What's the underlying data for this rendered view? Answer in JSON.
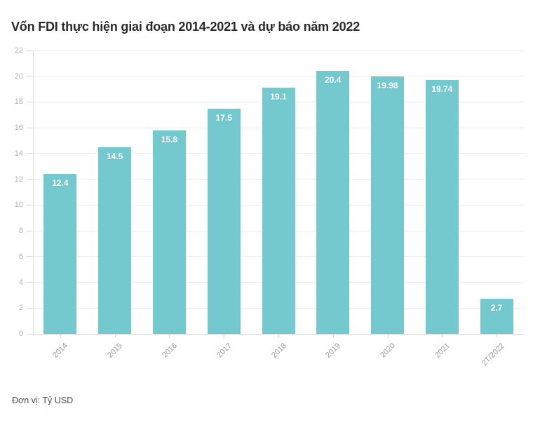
{
  "title": "Vốn FDI thực hiện giai đoạn 2014-2021 và dự báo năm 2022",
  "footer": {
    "unit_note": "Đơn vị: Tỷ USD"
  },
  "colors": {
    "bar": "#74c9cf",
    "title_text": "#2a2a2a",
    "value_label_text": "#ffffff",
    "axis_label_text": "#999999",
    "ytick_label_text": "#b1b1b1",
    "gridline": "#ececec",
    "background": "#ffffff"
  },
  "chart_data": {
    "type": "bar",
    "title": "Vốn FDI thực hiện giai đoạn 2014-2021 và dự báo năm 2022",
    "categories": [
      "2014",
      "2015",
      "2016",
      "2017",
      "2018",
      "2019",
      "2020",
      "2021",
      "2T/2022"
    ],
    "values": [
      12.4,
      14.5,
      15.8,
      17.5,
      19.1,
      20.4,
      19.98,
      19.74,
      2.7
    ],
    "value_labels": [
      "12.4",
      "14.5",
      "15.8",
      "17.5",
      "19.1",
      "20.4",
      "19.98",
      "19.74",
      "2.7"
    ],
    "xlabel": "",
    "ylabel": "",
    "unit_note": "Đơn vị: Tỷ USD",
    "ylim": [
      0,
      22
    ],
    "ytick_step": 2,
    "ytick_labels": [
      "0",
      "2",
      "4",
      "6",
      "8",
      "10",
      "12",
      "14",
      "16",
      "18",
      "20",
      "22"
    ],
    "grid": true,
    "legend": false,
    "bar_color": "#74c9cf",
    "xtick_rotation_deg": -45
  }
}
